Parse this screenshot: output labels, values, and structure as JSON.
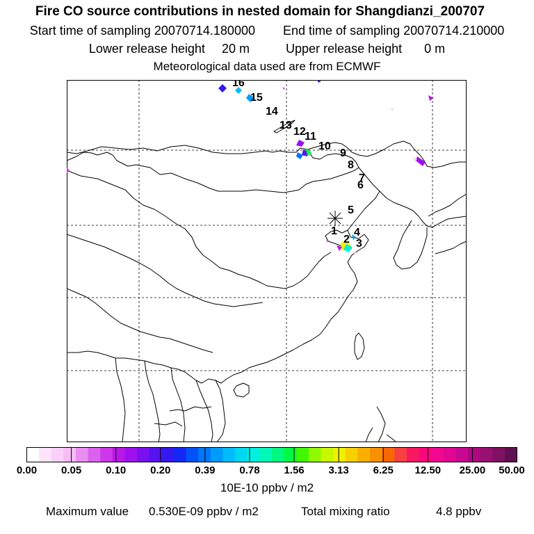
{
  "header": {
    "title": "Fire CO source contributions in nested domain for Shangdianzi_200707",
    "start_label": "Start time of sampling 20070714.180000",
    "end_label": "End time of sampling 20070714.210000",
    "lower_label": "Lower release height",
    "lower_value": "20 m",
    "upper_label": "Upper release height",
    "upper_value": "0 m",
    "met_label": "Meteorological data used are from ECMWF"
  },
  "map": {
    "trajectory_labels": [
      "1",
      "2",
      "3",
      "4",
      "5",
      "6",
      "7",
      "8",
      "9",
      "10",
      "11",
      "12",
      "13",
      "14",
      "15",
      "16"
    ],
    "receptor_marker": "receptor-star"
  },
  "colorbar": {
    "ticks": [
      "0.00",
      "0.05",
      "0.10",
      "0.20",
      "0.39",
      "0.78",
      "1.56",
      "3.13",
      "6.25",
      "12.50",
      "25.00",
      "50.00"
    ],
    "colors": [
      "#ffffff",
      "#fde4fb",
      "#fad0f8",
      "#f7bcf5",
      "#e98df0",
      "#db62ec",
      "#cc38e9",
      "#b818e6",
      "#9f10f0",
      "#7a10ee",
      "#5514ed",
      "#3318ef",
      "#1428f5",
      "#0052f8",
      "#0077fb",
      "#009cfc",
      "#00bcfc",
      "#00d8f0",
      "#00f0e0",
      "#00f8b8",
      "#00f880",
      "#00f840",
      "#40f800",
      "#90f800",
      "#c8f800",
      "#f0f000",
      "#f8d000",
      "#f8b000",
      "#f89000",
      "#f86800",
      "#f84040",
      "#f81860",
      "#f8087a",
      "#f00890",
      "#e00890",
      "#c80890",
      "#b00880",
      "#981070",
      "#801060",
      "#601050"
    ],
    "unit": "10E-10 ppbv / m2"
  },
  "footer": {
    "max_label": "Maximum value",
    "max_value": "0.530E-09 ppbv / m2",
    "total_label": "Total mixing ratio",
    "total_value": "4.8 ppbv"
  }
}
